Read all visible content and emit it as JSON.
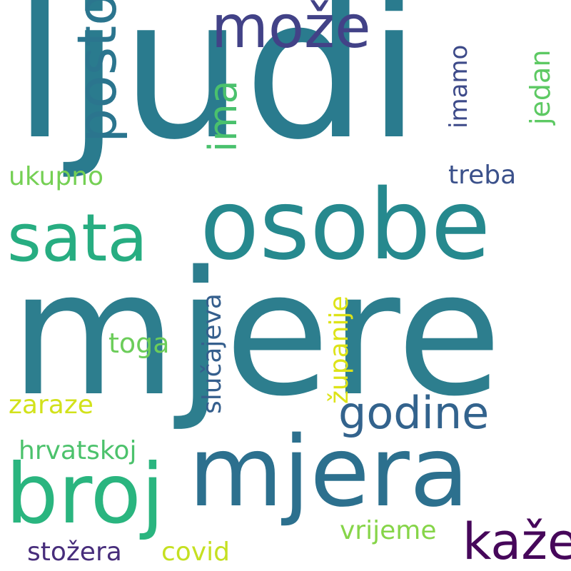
{
  "words": [
    {
      "text": "ljudi",
      "color": "#2a7b8e"
    },
    {
      "text": "mjere",
      "color": "#2d7e8e"
    },
    {
      "text": "osobe",
      "color": "#26898e"
    },
    {
      "text": "mjera",
      "color": "#2c708e"
    },
    {
      "text": "broj",
      "color": "#2ab57f"
    },
    {
      "text": "sata",
      "color": "#27ad81"
    },
    {
      "text": "može",
      "color": "#424287"
    },
    {
      "text": "posto",
      "color": "#2b758e"
    },
    {
      "text": "ima",
      "color": "#4ac16d"
    },
    {
      "text": "godine",
      "color": "#33638d"
    },
    {
      "text": "kaže",
      "color": "#46075a"
    },
    {
      "text": "imamo",
      "color": "#3d4a89"
    },
    {
      "text": "jedan",
      "color": "#5dc963"
    },
    {
      "text": "treba",
      "color": "#3b518b"
    },
    {
      "text": "ukupno",
      "color": "#75d054"
    },
    {
      "text": "slučajeva",
      "color": "#355f8d"
    },
    {
      "text": "županije",
      "color": "#dde318"
    },
    {
      "text": "toga",
      "color": "#6ccd5a"
    },
    {
      "text": "zaraze",
      "color": "#d2e21b"
    },
    {
      "text": "hrvatskoj",
      "color": "#4cc26c"
    },
    {
      "text": "vrijeme",
      "color": "#86d549"
    },
    {
      "text": "stožera",
      "color": "#472d7b"
    },
    {
      "text": "covid",
      "color": "#c5e021"
    }
  ]
}
